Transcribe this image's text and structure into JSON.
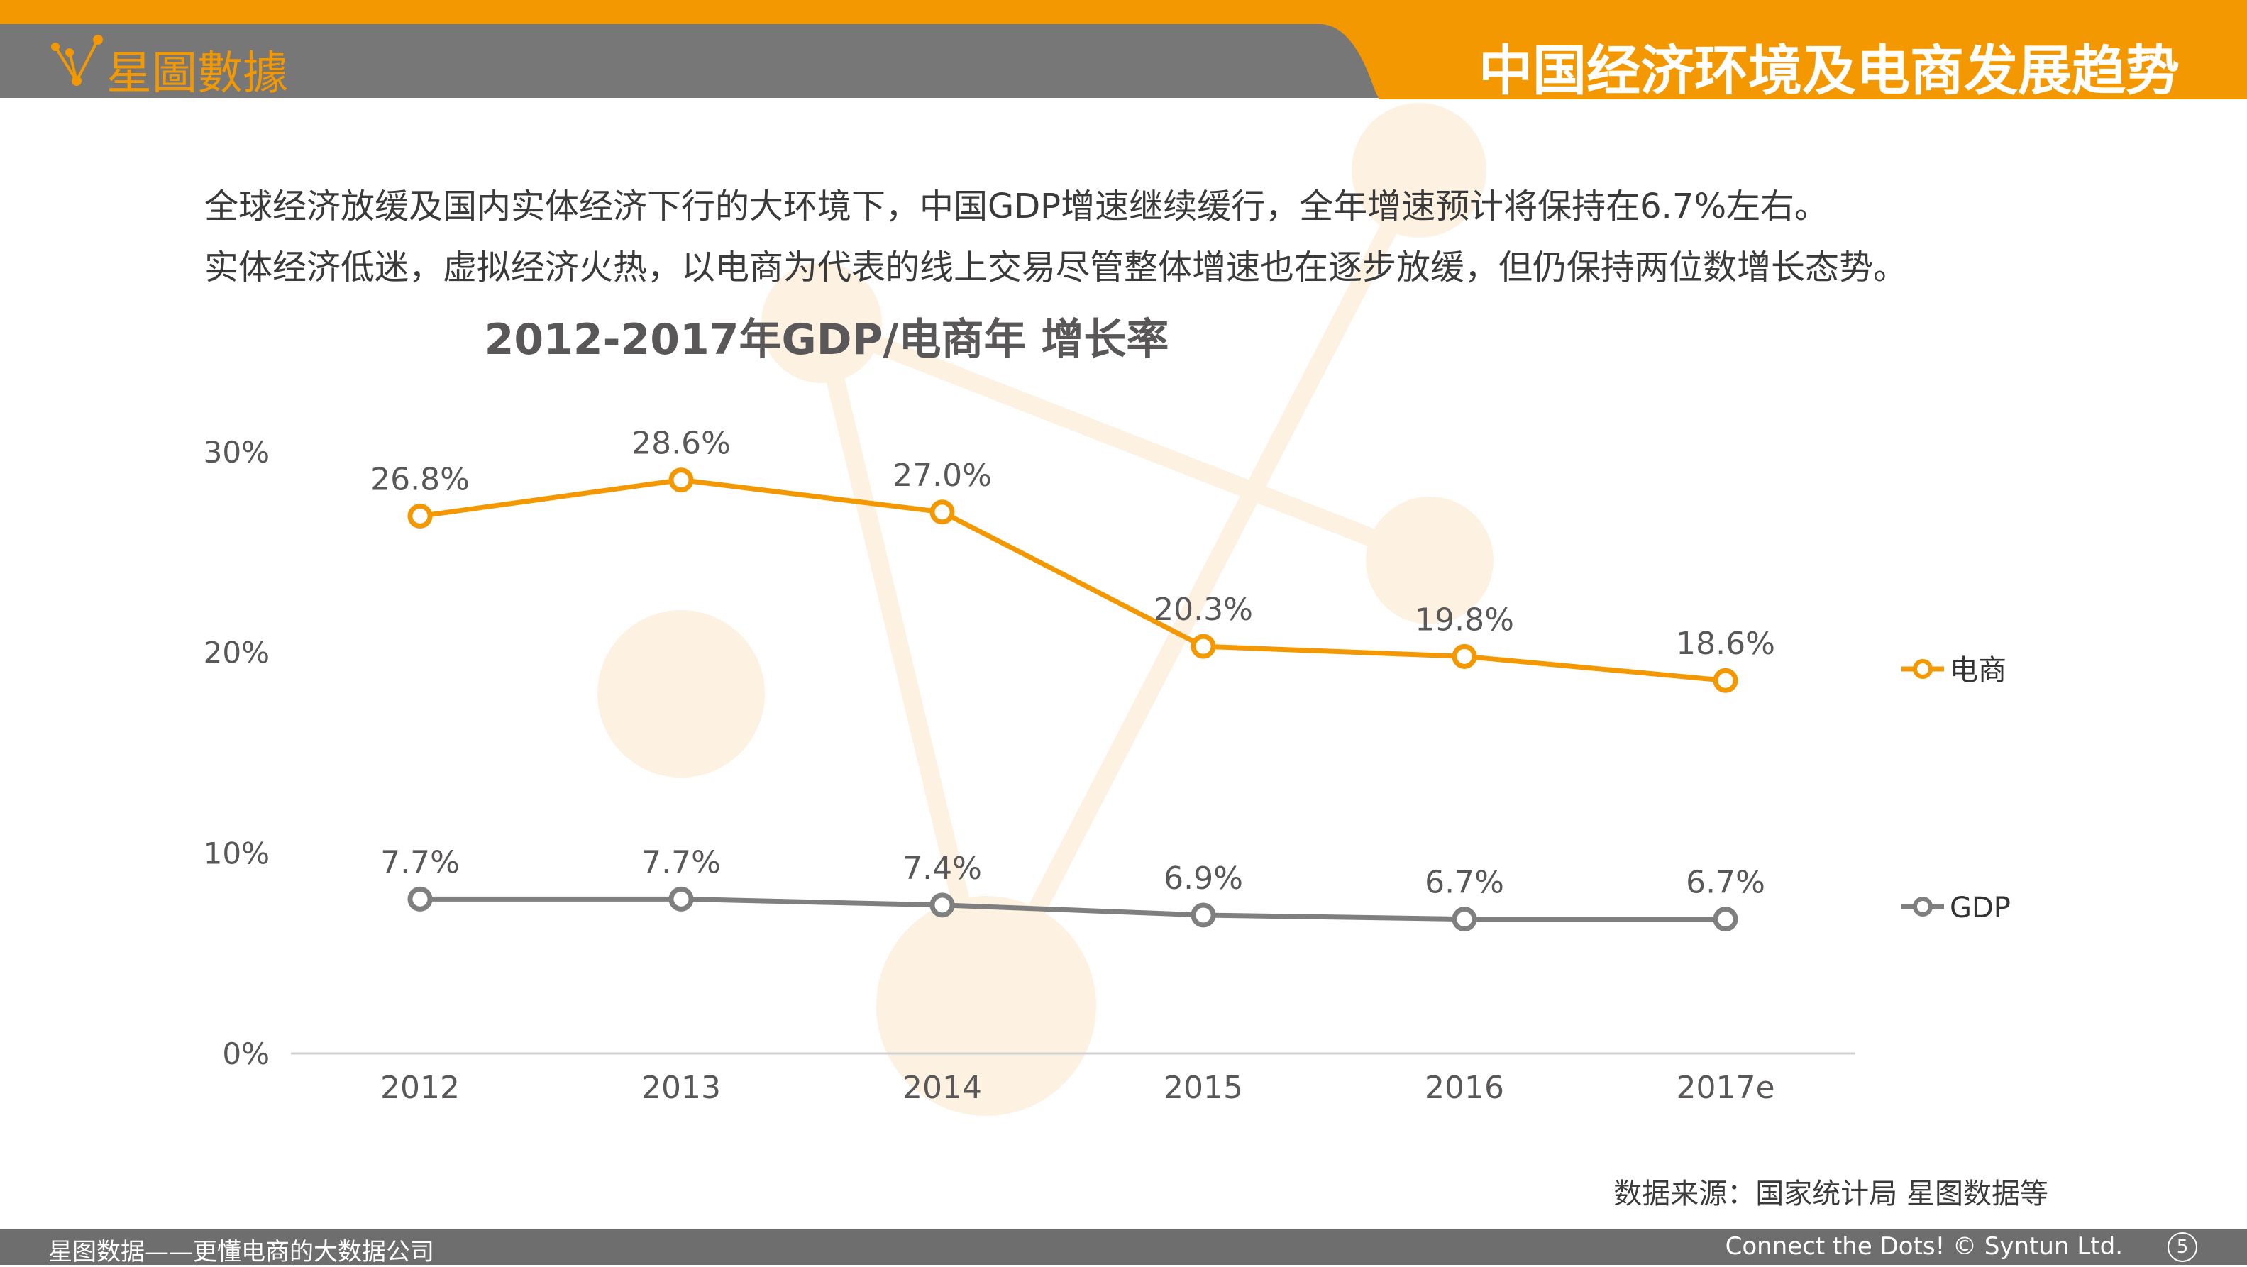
{
  "header": {
    "logo_text": "星圖數據",
    "title": "中国经济环境及电商发展趋势"
  },
  "intro": {
    "line1": "全球经济放缓及国内实体经济下行的大环境下，中国GDP增速继续缓行，全年增速预计将保持在6.7%左右。",
    "line2": "实体经济低迷，虚拟经济火热，以电商为代表的线上交易尽管整体增速也在逐步放缓，但仍保持两位数增长态势。"
  },
  "source": "数据来源：国家统计局  星图数据等",
  "footer": {
    "left": "星图数据——更懂电商的大数据公司",
    "right": "Connect the Dots! © Syntun Ltd.",
    "page": "5"
  },
  "colors": {
    "accent": "#F39800",
    "gray": "#7F7F7F",
    "header_gray": "#777777"
  },
  "chart_data": {
    "type": "line",
    "title": "2012-2017年GDP/电商年 增长率",
    "categories": [
      "2012",
      "2013",
      "2014",
      "2015",
      "2016",
      "2017e"
    ],
    "y_ticks": [
      "0%",
      "10%",
      "20%",
      "30%"
    ],
    "ylim": [
      0,
      30
    ],
    "legend_position": "right",
    "grid": false,
    "series": [
      {
        "name": "电商",
        "color": "#F39800",
        "values": [
          26.8,
          28.6,
          27.0,
          20.3,
          19.8,
          18.6
        ],
        "labels": [
          "26.8%",
          "28.6%",
          "27.0%",
          "20.3%",
          "19.8%",
          "18.6%"
        ]
      },
      {
        "name": "GDP",
        "color": "#7F7F7F",
        "values": [
          7.7,
          7.7,
          7.4,
          6.9,
          6.7,
          6.7
        ],
        "labels": [
          "7.7%",
          "7.7%",
          "7.4%",
          "6.9%",
          "6.7%",
          "6.7%"
        ]
      }
    ]
  }
}
